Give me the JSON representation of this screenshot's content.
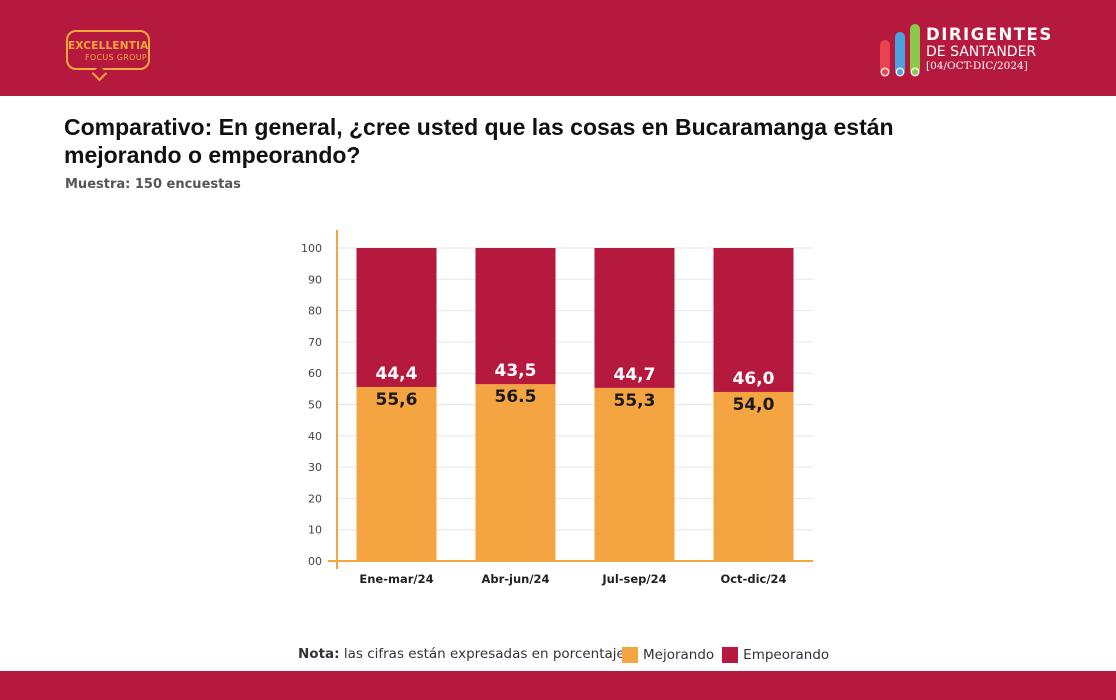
{
  "brand": {
    "left_logo_word": "EXCELLENTIA",
    "left_logo_sub": "FOCUS GROUP",
    "right_logo_title": "DIRIGENTES",
    "right_logo_subtitle": "DE SANTANDER",
    "right_logo_period": "[04/OCT-DIC/2024]",
    "color_primary": "#b51a3e",
    "color_accent": "#f5a73e"
  },
  "header": {
    "title": "Comparativo: En general, ¿cree usted que las cosas en Bucaramanga están mejorando o empeorando?",
    "sample": "Muestra: 150 encuestas"
  },
  "footer": {
    "note_label": "Nota:",
    "note_text": "las cifras están expresadas en porcentaje"
  },
  "chart_data": {
    "type": "bar",
    "stacked": true,
    "categories": [
      "Ene-mar/24",
      "Abr-jun/24",
      "Jul-sep/24",
      "Oct-dic/24"
    ],
    "series": [
      {
        "name": "Mejorando",
        "color": "#f5a442",
        "values": [
          55.6,
          56.5,
          55.3,
          54.0
        ],
        "labels": [
          "55,6",
          "56.5",
          "55,3",
          "54,0"
        ]
      },
      {
        "name": "Empeorando",
        "color": "#b51a3e",
        "values": [
          44.4,
          43.5,
          44.7,
          46.0
        ],
        "labels": [
          "44,4",
          "43,5",
          "44,7",
          "46,0"
        ]
      }
    ],
    "ylim": [
      0,
      100
    ],
    "yticks": [
      "00",
      "10",
      "20",
      "30",
      "40",
      "50",
      "60",
      "70",
      "80",
      "90",
      "100"
    ],
    "grid": true,
    "legend_position": "bottom"
  }
}
